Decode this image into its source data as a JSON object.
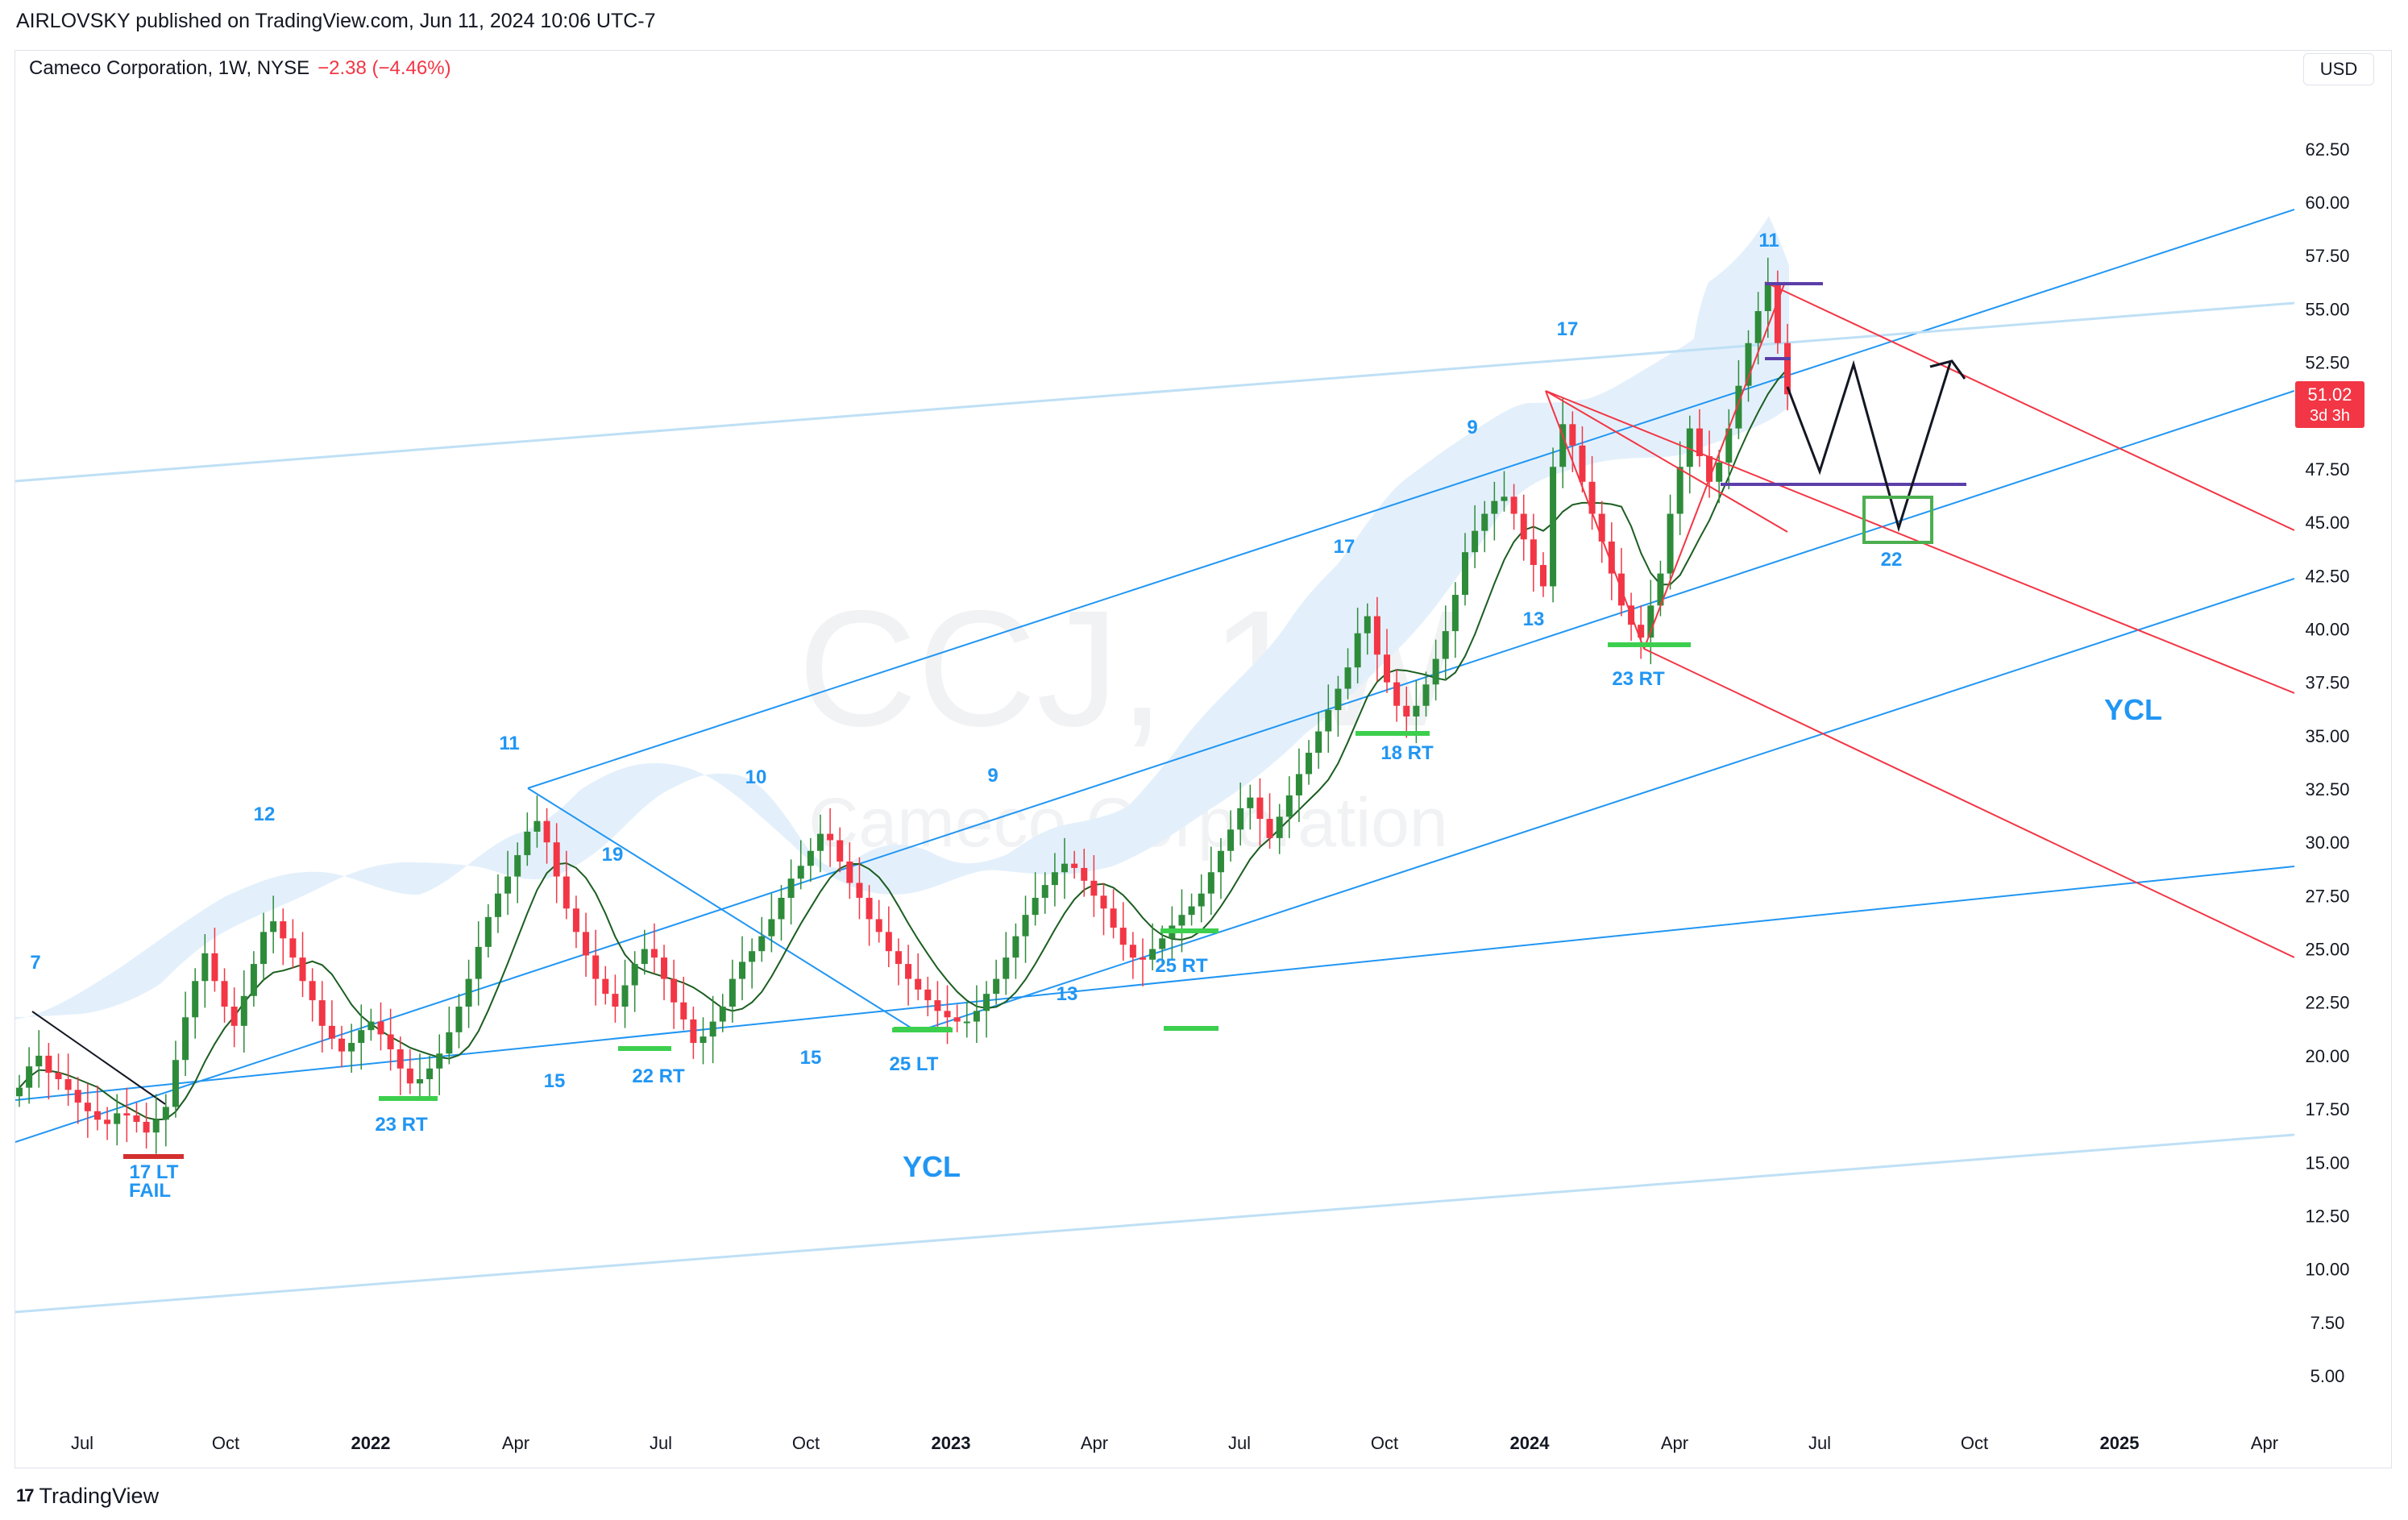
{
  "header": {
    "published_by": "AIRLOVSKY published on TradingView.com, Jun 11, 2024 10:06 UTC-7"
  },
  "legend": {
    "symbol": "Cameco Corporation, 1W, NYSE",
    "change": "−2.38 (−4.46%)"
  },
  "currency_button": "USD",
  "watermark": {
    "ticker": "CCJ, 1W",
    "name": "Cameco Corporation"
  },
  "footer": {
    "brand": "TradingView"
  },
  "colors": {
    "up": "#089981",
    "up_body": "#2e8b3a",
    "down": "#f23645",
    "channel": "#2196f3",
    "channel_light": "#bfe0f5",
    "band_fill": "#e3f0fb",
    "fork": "#f23645",
    "purple": "#5b3ea8",
    "green_mark": "#3ccf4e",
    "label_blue": "#2196f3"
  },
  "chart_data": {
    "type": "candlestick",
    "symbol": "CCJ",
    "interval": "1W",
    "price_axis": {
      "ticks": [
        "62.50",
        "60.00",
        "57.50",
        "55.00",
        "52.50",
        "50.00",
        "47.50",
        "45.00",
        "42.50",
        "40.00",
        "37.50",
        "35.00",
        "32.50",
        "30.00",
        "27.50",
        "25.00",
        "22.50",
        "20.00",
        "17.50",
        "15.00",
        "12.50",
        "10.00",
        "7.50",
        "5.00"
      ],
      "last_price": "51.02",
      "countdown": "3d 3h"
    },
    "time_axis": {
      "ticks": [
        {
          "label": "Jul",
          "bold": false
        },
        {
          "label": "Oct",
          "bold": false
        },
        {
          "label": "2022",
          "bold": true
        },
        {
          "label": "Apr",
          "bold": false
        },
        {
          "label": "Jul",
          "bold": false
        },
        {
          "label": "Oct",
          "bold": false
        },
        {
          "label": "2023",
          "bold": true
        },
        {
          "label": "Apr",
          "bold": false
        },
        {
          "label": "Jul",
          "bold": false
        },
        {
          "label": "Oct",
          "bold": false
        },
        {
          "label": "2024",
          "bold": true
        },
        {
          "label": "Apr",
          "bold": false
        },
        {
          "label": "Jul",
          "bold": false
        },
        {
          "label": "Oct",
          "bold": false
        },
        {
          "label": "2025",
          "bold": true
        },
        {
          "label": "Apr",
          "bold": false
        }
      ]
    },
    "cycle_labels": [
      "7",
      "12",
      "11",
      "19",
      "10",
      "9",
      "17",
      "9",
      "17",
      "11",
      "15",
      "22 RT",
      "15",
      "25 LT",
      "13",
      "25 RT",
      "18 RT",
      "13",
      "23 RT",
      "23 RT",
      "22",
      "17 LT",
      "FAIL"
    ],
    "text_labels": [
      "YCL",
      "YCL"
    ],
    "close_path": [
      18.5,
      19.5,
      20,
      19.2,
      18.9,
      18.4,
      17.8,
      17.4,
      17.0,
      16.8,
      17.3,
      17.2,
      16.9,
      16.4,
      17.0,
      17.6,
      19.8,
      21.8,
      23.5,
      24.8,
      23.5,
      22.3,
      21.4,
      22.8,
      24.3,
      25.8,
      26.3,
      25.5,
      24.6,
      23.5,
      22.6,
      21.4,
      20.8,
      20.2,
      20.6,
      21.2,
      21.6,
      21.0,
      20.3,
      19.4,
      18.7,
      18.9,
      19.4,
      20.1,
      21.1,
      22.3,
      23.6,
      25.1,
      26.5,
      27.6,
      28.4,
      29.4,
      30.5,
      31.0,
      30.0,
      28.4,
      26.9,
      25.8,
      24.7,
      23.6,
      22.9,
      22.3,
      23.3,
      24.3,
      25.0,
      24.6,
      23.6,
      22.5,
      21.7,
      20.6,
      20.9,
      21.6,
      22.3,
      23.6,
      24.4,
      24.9,
      25.6,
      26.4,
      27.4,
      28.3,
      28.9,
      29.6,
      30.4,
      30.1,
      29.1,
      28.1,
      27.4,
      26.4,
      25.8,
      24.9,
      24.3,
      23.6,
      23.1,
      22.6,
      22.1,
      21.8,
      21.6,
      21.6,
      22.1,
      22.9,
      23.6,
      24.6,
      25.6,
      26.6,
      27.4,
      28.0,
      28.6,
      29.0,
      28.8,
      28.2,
      27.5,
      26.9,
      26.0,
      25.2,
      24.6,
      24.5,
      25.0,
      25.5,
      26.1,
      26.6,
      27.0,
      27.6,
      28.6,
      29.6,
      30.6,
      31.6,
      32.1,
      31.1,
      30.2,
      31.2,
      32.2,
      33.2,
      34.2,
      35.2,
      36.2,
      37.2,
      38.2,
      39.8,
      40.6,
      38.8,
      37.5,
      36.4,
      35.9,
      36.4,
      37.4,
      38.6,
      39.9,
      41.6,
      43.6,
      44.6,
      45.4,
      46.0,
      46.2,
      45.4,
      44.2,
      43.0,
      42.0,
      47.6,
      49.6,
      48.6,
      46.9,
      45.4,
      44.1,
      42.6,
      41.1,
      40.2,
      39.6,
      41.1,
      42.6,
      45.4,
      47.6,
      49.4,
      48.1,
      46.9,
      47.8,
      49.4,
      51.4,
      53.4,
      54.9,
      56.2,
      53.4,
      51.0
    ]
  }
}
